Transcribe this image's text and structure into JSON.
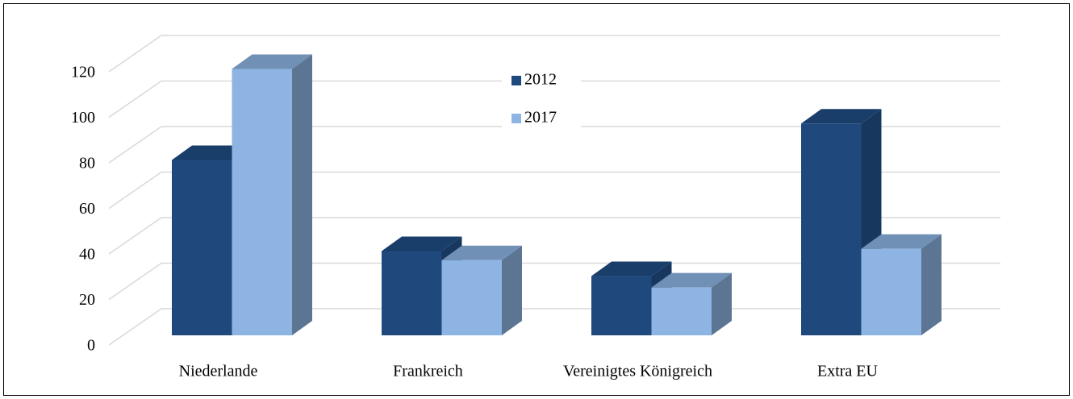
{
  "chart_data": {
    "type": "bar3d",
    "categories": [
      "Niederlande",
      "Frankreich",
      "Vereinigtes Königreich",
      "Extra EU"
    ],
    "series": [
      {
        "name": "2012",
        "color": "#1f497d",
        "values": [
          77,
          37,
          26,
          93
        ]
      },
      {
        "name": "2017",
        "color": "#8db4e2",
        "values": [
          117,
          33,
          21,
          38
        ]
      }
    ],
    "ylim": [
      0,
      120
    ],
    "yticks": [
      0,
      20,
      40,
      60,
      80,
      100,
      120
    ],
    "grid": true
  }
}
